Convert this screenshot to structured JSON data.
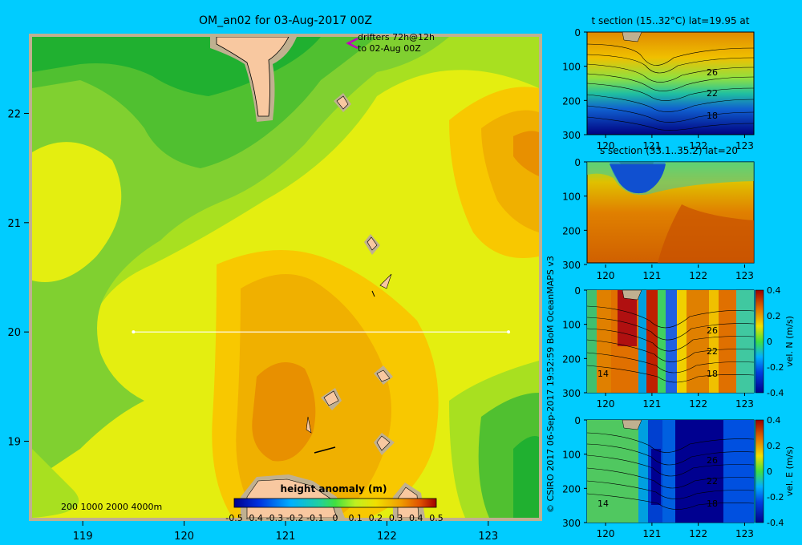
{
  "chart_data": [
    {
      "type": "heatmap",
      "title": "OM_an02 for 03-Aug-2017 00Z",
      "x_ticks": [
        "119",
        "120",
        "121",
        "122",
        "123"
      ],
      "y_ticks": [
        "22",
        "21",
        "20",
        "19"
      ],
      "xlim": [
        118.5,
        123.5
      ],
      "ylim": [
        18.3,
        22.7
      ],
      "section_line": {
        "lat": 20,
        "lon_start": 119.5,
        "lon_end": 123.2
      },
      "annotation_line1": "drifters 72h@12h",
      "annotation_line2": "to 02-Aug 00Z",
      "depth_legend": "200  1000  2000  4000m",
      "colorbar": {
        "label": "height anomaly  (m)",
        "ticks": [
          "-0.5",
          "-0.4",
          "-0.3",
          "-0.2",
          "-0.1",
          "0",
          "0.1",
          "0.2",
          "0.3",
          "0.4",
          "0.5"
        ],
        "range": [
          -0.5,
          0.5
        ]
      }
    },
    {
      "type": "heatmap",
      "title": "t section (15..32°C) lat=19.95 at",
      "x_ticks": [
        "120",
        "121",
        "122",
        "123"
      ],
      "y_ticks": [
        "0",
        "100",
        "200",
        "300"
      ],
      "contour_labels": [
        "26",
        "22",
        "18"
      ]
    },
    {
      "type": "heatmap",
      "title": "s section (33.1..35.2) lat=20",
      "x_ticks": [
        "120",
        "121",
        "122",
        "123"
      ],
      "y_ticks": [
        "0",
        "100",
        "200",
        "300"
      ]
    },
    {
      "type": "heatmap",
      "title": "",
      "x_ticks": [
        "120",
        "121",
        "122",
        "123"
      ],
      "y_ticks": [
        "0",
        "100",
        "200",
        "300"
      ],
      "contour_labels": [
        "26",
        "22",
        "18",
        "14"
      ],
      "colorbar": {
        "label": "vel. N  (m/s)",
        "ticks": [
          "0.4",
          "0.2",
          "0",
          "-0.2",
          "-0.4"
        ],
        "range": [
          -0.4,
          0.4
        ]
      }
    },
    {
      "type": "heatmap",
      "title": "",
      "x_ticks": [
        "120",
        "121",
        "122",
        "123"
      ],
      "y_ticks": [
        "0",
        "100",
        "200",
        "300"
      ],
      "contour_labels": [
        "26",
        "22",
        "18",
        "14"
      ],
      "colorbar": {
        "label": "vel. E  (m/s)",
        "ticks": [
          "0.4",
          "0.2",
          "0",
          "-0.2",
          "-0.4"
        ],
        "range": [
          -0.4,
          0.4
        ]
      }
    }
  ],
  "credit": "© CSIRO 2017   06-Sep-2017 19:52:59 BoM OceanMAPS v3"
}
